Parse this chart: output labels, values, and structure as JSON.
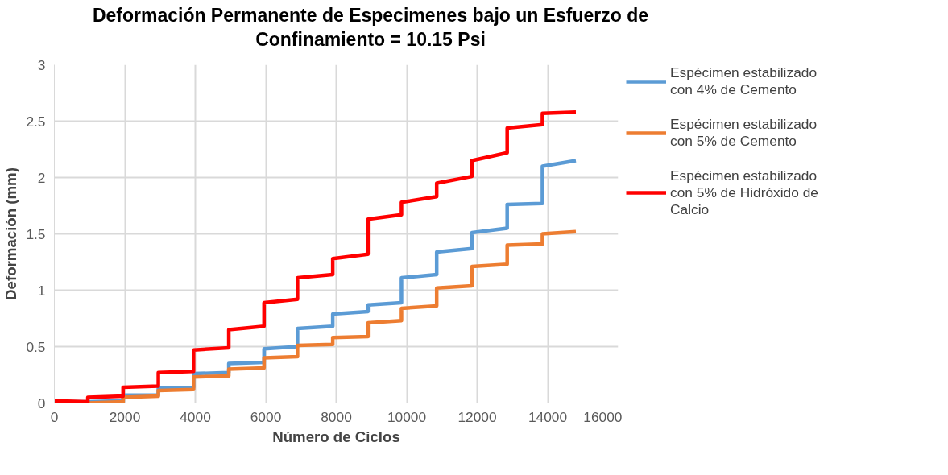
{
  "chart_data": {
    "type": "line",
    "title": "Deformación Permanente de Especimenes bajo un Esfuerzo de Confinamiento = 10.15 Psi",
    "xlabel": "Número de Ciclos",
    "ylabel": "Deformación (mm)",
    "x": [
      0,
      950,
      950,
      1950,
      1950,
      2950,
      2950,
      3950,
      3950,
      4950,
      4950,
      5950,
      5950,
      6900,
      6900,
      7900,
      7900,
      8900,
      8900,
      9850,
      9850,
      10850,
      10850,
      11850,
      11850,
      12850,
      12850,
      13850,
      13850,
      14800
    ],
    "series": [
      {
        "name": "Espécimen estabilizado con 4% de Cemento",
        "color": "#5b9bd5",
        "values": [
          0.01,
          0.01,
          0.01,
          0.02,
          0.07,
          0.07,
          0.13,
          0.14,
          0.26,
          0.27,
          0.35,
          0.36,
          0.48,
          0.5,
          0.66,
          0.68,
          0.79,
          0.81,
          0.87,
          0.89,
          1.11,
          1.14,
          1.34,
          1.37,
          1.51,
          1.55,
          1.76,
          1.77,
          2.1,
          2.15
        ]
      },
      {
        "name": "Espécimen estabilizado con 5% de Cemento",
        "color": "#ed7d31",
        "values": [
          0,
          0,
          0,
          0.01,
          0.05,
          0.06,
          0.11,
          0.12,
          0.23,
          0.24,
          0.3,
          0.31,
          0.4,
          0.41,
          0.51,
          0.52,
          0.58,
          0.59,
          0.71,
          0.73,
          0.84,
          0.86,
          1.02,
          1.04,
          1.21,
          1.23,
          1.4,
          1.41,
          1.5,
          1.52
        ]
      },
      {
        "name": "Espécimen estabilizado con 5% de Hidróxido de Calcio",
        "color": "#ff0000",
        "values": [
          0.02,
          0.01,
          0.05,
          0.06,
          0.14,
          0.15,
          0.27,
          0.28,
          0.47,
          0.49,
          0.65,
          0.68,
          0.89,
          0.92,
          1.11,
          1.14,
          1.28,
          1.32,
          1.63,
          1.67,
          1.78,
          1.83,
          1.95,
          2.01,
          2.15,
          2.22,
          2.44,
          2.47,
          2.57,
          2.58
        ]
      }
    ],
    "xlim": [
      0,
      16000
    ],
    "xticks": [
      0,
      2000,
      4000,
      6000,
      8000,
      10000,
      12000,
      14000,
      16000
    ],
    "ylim": [
      0,
      3
    ],
    "yticks": [
      0,
      0.5,
      1,
      1.5,
      2,
      2.5,
      3
    ],
    "grid": true,
    "legend": "right",
    "marker": "none",
    "line_style": "solid"
  }
}
